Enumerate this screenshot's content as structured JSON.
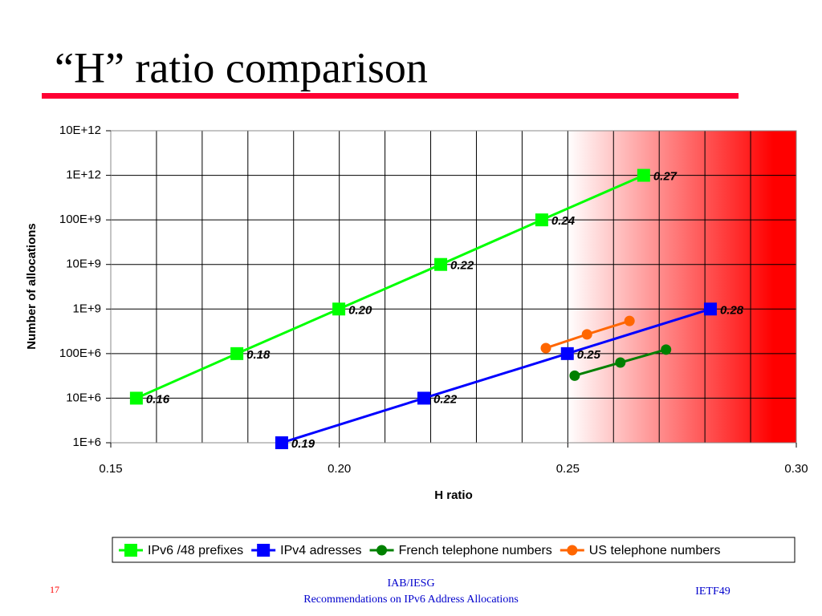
{
  "slide": {
    "title": "“H” ratio comparison",
    "page_number": "17",
    "footer_center": [
      "IAB/IESG",
      "Recommendations on IPv6 Address Allocations"
    ],
    "footer_right": "IETF49"
  },
  "chart_data": {
    "type": "line",
    "log_y": true,
    "grid": true,
    "x_label": "H ratio",
    "y_label": "Number of allocations",
    "xlim": [
      0.15,
      0.3
    ],
    "xticks": [
      0.15,
      {
        "value": 0.2,
        "label": "0.20"
      },
      0.25,
      {
        "value": 0.3,
        "label": "0.30"
      }
    ],
    "xgrid": [
      0.16,
      0.17,
      0.18,
      0.19,
      0.2,
      0.21,
      0.22,
      0.23,
      0.24,
      0.25,
      0.26,
      0.27,
      0.28,
      0.29
    ],
    "ylim": [
      1000000,
      10000000000000
    ],
    "yticks": [
      {
        "value": 1000000,
        "label": "1E+6"
      },
      {
        "value": 10000000,
        "label": "10E+6"
      },
      {
        "value": 100000000,
        "label": "100E+6"
      },
      {
        "value": 1000000000,
        "label": "1E+9"
      },
      {
        "value": 10000000000,
        "label": "10E+9"
      },
      {
        "value": 100000000000,
        "label": "100E+9"
      },
      {
        "value": 1000000000000,
        "label": "1E+12"
      },
      {
        "value": 10000000000000,
        "label": "10E+12"
      }
    ],
    "series": [
      {
        "name": "IPv6 /48 prefixes",
        "color": "#00ff00",
        "marker": "square",
        "x": [
          0.1556,
          0.1776,
          0.1999,
          0.2222,
          0.2443,
          0.2666
        ],
        "values": [
          10000000,
          100000000,
          1000000000,
          10000000000,
          100000000000,
          1000000000000
        ],
        "x_labels": [
          "0.16",
          "0.18",
          "0.20",
          "0.22",
          "0.24",
          "0.27"
        ]
      },
      {
        "name": "IPv4 adresses",
        "color": "#0000ff",
        "marker": "square",
        "x": [
          0.1874,
          0.2185,
          0.2499,
          0.2812
        ],
        "values": [
          1000000,
          10000000,
          100000000,
          1000000000
        ],
        "x_labels": [
          "0.19",
          "0.22",
          "0.25",
          "0.28"
        ]
      },
      {
        "name": "French telephone numbers",
        "color": "#008000",
        "marker": "circle",
        "x": [
          0.2515,
          0.2615,
          0.2715
        ],
        "values": [
          32000000,
          63000000,
          123000000
        ]
      },
      {
        "name": "US telephone numbers",
        "color": "#ff6600",
        "marker": "circle",
        "x": [
          0.2452,
          0.2542,
          0.2635
        ],
        "values": [
          133000000,
          270000000,
          540000000
        ]
      }
    ]
  }
}
